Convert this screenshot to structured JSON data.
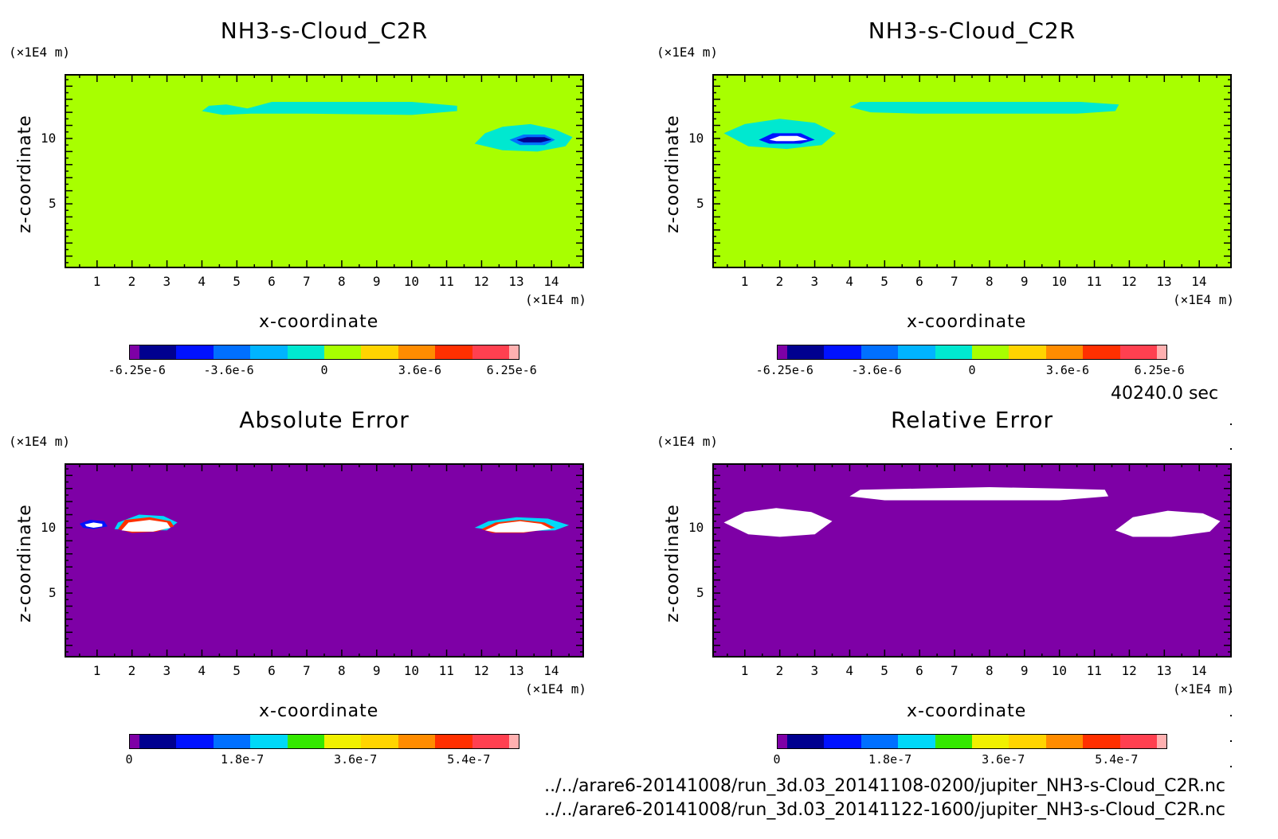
{
  "time_label": "40240.0 sec",
  "files": [
    "../../arare6-20141008/run_3d.03_20141108-0200/jupiter_NH3-s-Cloud_C2R.nc",
    "../../arare6-20141008/run_3d.03_20141122-1600/jupiter_NH3-s-Cloud_C2R.nc"
  ],
  "colors": {
    "bg_green": "#a8ff00",
    "bg_purple": "#7e00a6",
    "field_cyan": "#00e8d0",
    "field_blue": "#0012ff",
    "field_white": "#ffffff"
  },
  "chart_data": [
    {
      "type": "heatmap",
      "title": "NH3-s-Cloud_C2R",
      "xlabel": "x-coordinate",
      "ylabel": "z-coordinate",
      "x_unit": "(×1E4 m)",
      "y_unit": "(×1E4 m)",
      "xlim": [
        0.07,
        14.93
      ],
      "ylim": [
        0.07,
        14.93
      ],
      "xticks": [
        "1",
        "2",
        "3",
        "4",
        "5",
        "6",
        "7",
        "8",
        "9",
        "10",
        "11",
        "12",
        "13",
        "14"
      ],
      "yticks": [
        "5",
        "10"
      ],
      "colorbar": {
        "colors": [
          "#7e00a6",
          "#00008f",
          "#0012ff",
          "#0070ff",
          "#00b4ff",
          "#00e8d0",
          "#a8ff00",
          "#ffd400",
          "#ff8c00",
          "#ff3000",
          "#ff4050",
          "#ffb0b0"
        ],
        "labels": [
          "-6.25e-6",
          "-3.6e-6",
          "0",
          "3.6e-6",
          "6.25e-6"
        ]
      }
    },
    {
      "type": "heatmap",
      "title": "NH3-s-Cloud_C2R",
      "xlabel": "x-coordinate",
      "ylabel": "z-coordinate",
      "x_unit": "(×1E4 m)",
      "y_unit": "(×1E4 m)",
      "xlim": [
        0.07,
        14.93
      ],
      "ylim": [
        0.07,
        14.93
      ],
      "xticks": [
        "1",
        "2",
        "3",
        "4",
        "5",
        "6",
        "7",
        "8",
        "9",
        "10",
        "11",
        "12",
        "13",
        "14"
      ],
      "yticks": [
        "5",
        "10"
      ],
      "colorbar": {
        "colors": [
          "#7e00a6",
          "#00008f",
          "#0012ff",
          "#0070ff",
          "#00b4ff",
          "#00e8d0",
          "#a8ff00",
          "#ffd400",
          "#ff8c00",
          "#ff3000",
          "#ff4050",
          "#ffb0b0"
        ],
        "labels": [
          "-6.25e-6",
          "-3.6e-6",
          "0",
          "3.6e-6",
          "6.25e-6"
        ]
      }
    },
    {
      "type": "heatmap",
      "title": "Absolute Error",
      "xlabel": "x-coordinate",
      "ylabel": "z-coordinate",
      "x_unit": "(×1E4 m)",
      "y_unit": "(×1E4 m)",
      "xlim": [
        0.07,
        14.93
      ],
      "ylim": [
        0.07,
        14.93
      ],
      "xticks": [
        "1",
        "2",
        "3",
        "4",
        "5",
        "6",
        "7",
        "8",
        "9",
        "10",
        "11",
        "12",
        "13",
        "14"
      ],
      "yticks": [
        "5",
        "10"
      ],
      "colorbar": {
        "colors": [
          "#7e00a6",
          "#00008f",
          "#0012ff",
          "#0070ff",
          "#00d8f8",
          "#34e800",
          "#f0f000",
          "#ffd400",
          "#ff8c00",
          "#ff3000",
          "#ff4050",
          "#ffb0b0"
        ],
        "labels": [
          "0",
          "1.8e-7",
          "3.6e-7",
          "5.4e-7"
        ]
      }
    },
    {
      "type": "heatmap",
      "title": "Relative Error",
      "xlabel": "x-coordinate",
      "ylabel": "z-coordinate",
      "x_unit": "(×1E4 m)",
      "y_unit": "(×1E4 m)",
      "xlim": [
        0.07,
        14.93
      ],
      "ylim": [
        0.07,
        14.93
      ],
      "xticks": [
        "1",
        "2",
        "3",
        "4",
        "5",
        "6",
        "7",
        "8",
        "9",
        "10",
        "11",
        "12",
        "13",
        "14"
      ],
      "yticks": [
        "5",
        "10"
      ],
      "colorbar": {
        "colors": [
          "#7e00a6",
          "#00008f",
          "#0012ff",
          "#0070ff",
          "#00d8f8",
          "#34e800",
          "#f0f000",
          "#ffd400",
          "#ff8c00",
          "#ff3000",
          "#ff4050",
          "#ffb0b0"
        ],
        "labels": [
          "0",
          "1.8e-7",
          "3.6e-7",
          "5.4e-7"
        ]
      }
    }
  ]
}
